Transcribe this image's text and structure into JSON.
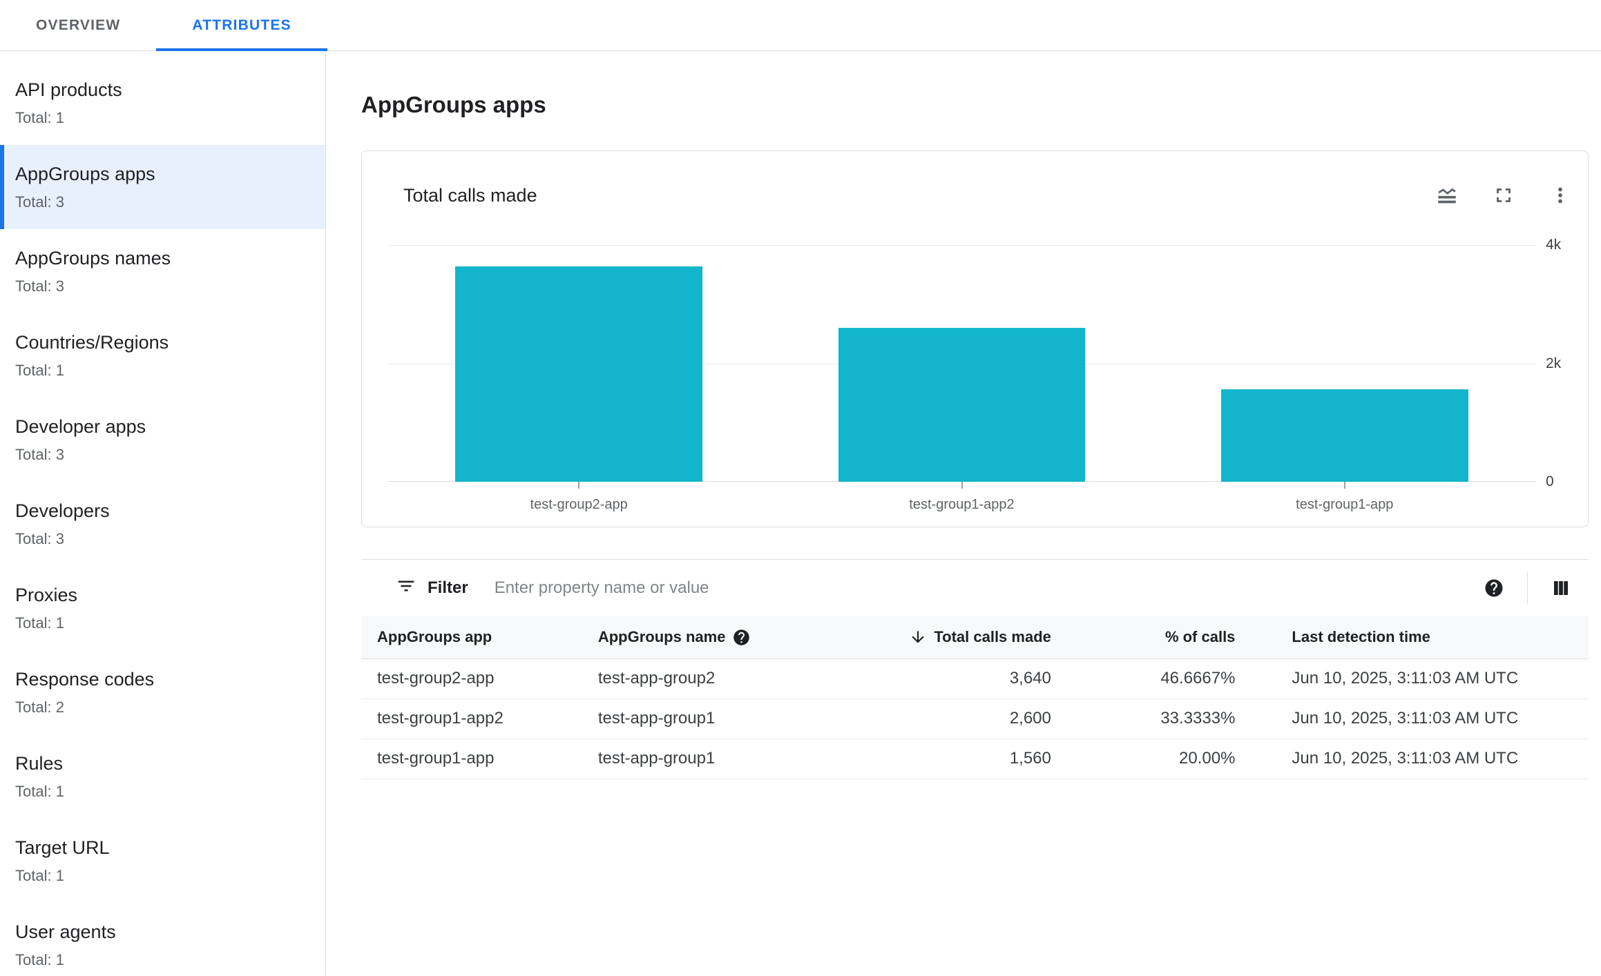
{
  "tabs": {
    "overview": "OVERVIEW",
    "attributes": "ATTRIBUTES",
    "active": "ATTRIBUTES"
  },
  "sidebar": {
    "items": [
      {
        "label": "API products",
        "total": "Total: 1"
      },
      {
        "label": "AppGroups apps",
        "total": "Total: 3",
        "selected": true
      },
      {
        "label": "AppGroups names",
        "total": "Total: 3"
      },
      {
        "label": "Countries/Regions",
        "total": "Total: 1"
      },
      {
        "label": "Developer apps",
        "total": "Total: 3"
      },
      {
        "label": "Developers",
        "total": "Total: 3"
      },
      {
        "label": "Proxies",
        "total": "Total: 1"
      },
      {
        "label": "Response codes",
        "total": "Total: 2"
      },
      {
        "label": "Rules",
        "total": "Total: 1"
      },
      {
        "label": "Target URL",
        "total": "Total: 1"
      },
      {
        "label": "User agents",
        "total": "Total: 1"
      }
    ]
  },
  "page": {
    "title": "AppGroups apps"
  },
  "chart_card": {
    "title": "Total calls made",
    "icons": [
      "chart-settings-icon",
      "fullscreen-icon",
      "more-options-icon"
    ]
  },
  "chart_data": {
    "type": "bar",
    "title": "Total calls made",
    "categories": [
      "test-group2-app",
      "test-group1-app2",
      "test-group1-app"
    ],
    "values": [
      3640,
      2600,
      1560
    ],
    "xlabel": "",
    "ylabel": "",
    "ylim": [
      0,
      4000
    ],
    "yticks": [
      {
        "value": 4000,
        "label": "4k"
      },
      {
        "value": 2000,
        "label": "2k"
      },
      {
        "value": 0,
        "label": "0"
      }
    ],
    "y_axis_side": "right",
    "grid": true,
    "legend": "none",
    "bar_color": "#12b5cb"
  },
  "filter": {
    "label": "Filter",
    "placeholder": "Enter property name or value"
  },
  "table": {
    "columns": [
      {
        "label": "AppGroups app"
      },
      {
        "label": "AppGroups name",
        "help": true
      },
      {
        "label": "Total calls made",
        "sort": "desc"
      },
      {
        "label": "% of calls"
      },
      {
        "label": "Last detection time"
      }
    ],
    "rows": [
      [
        "test-group2-app",
        "test-app-group2",
        "3,640",
        "46.6667%",
        "Jun 10, 2025, 3:11:03 AM UTC"
      ],
      [
        "test-group1-app2",
        "test-app-group1",
        "2,600",
        "33.3333%",
        "Jun 10, 2025, 3:11:03 AM UTC"
      ],
      [
        "test-group1-app",
        "test-app-group1",
        "1,560",
        "20.00%",
        "Jun 10, 2025, 3:11:03 AM UTC"
      ]
    ]
  },
  "colors": {
    "accent": "#1a73e8",
    "selected_bg": "#e8f0fe",
    "bar": "#12b5cb"
  }
}
